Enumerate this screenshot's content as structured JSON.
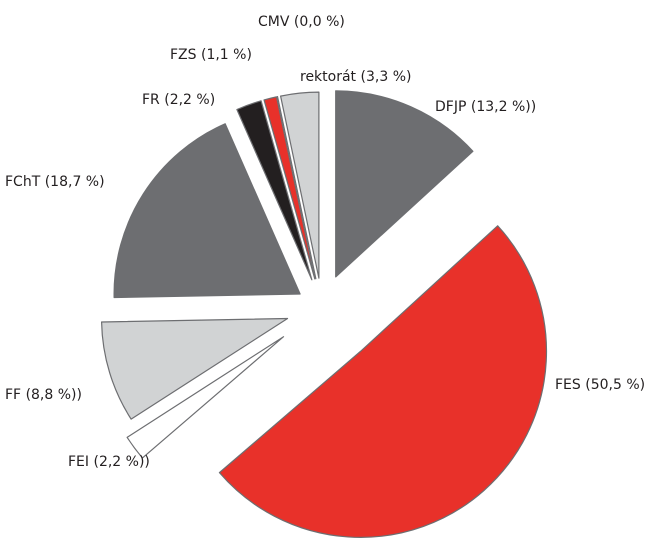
{
  "chart_data": {
    "type": "pie",
    "categories": [
      "DFJP",
      "FES",
      "FEI",
      "FF",
      "FChT",
      "FR",
      "FZS",
      "CMV",
      "rektorát"
    ],
    "values": [
      13.2,
      50.5,
      2.2,
      8.8,
      18.7,
      2.2,
      1.1,
      0.0,
      3.3
    ],
    "value_labels": [
      "(13,2 %))",
      "(50,5 %)",
      "(2,2 %))",
      "(8,8 %))",
      "(18,7 %)",
      "(2,2 %)",
      "(1,1 %)",
      "(0,0 %)",
      "(3,3 %)"
    ],
    "colors": [
      "#6d6e71",
      "#e8312a",
      "#ffffff",
      "#d1d3d4",
      "#6d6e71",
      "#231f20",
      "#e8312a",
      "#ffffff",
      "#d1d3d4"
    ]
  }
}
